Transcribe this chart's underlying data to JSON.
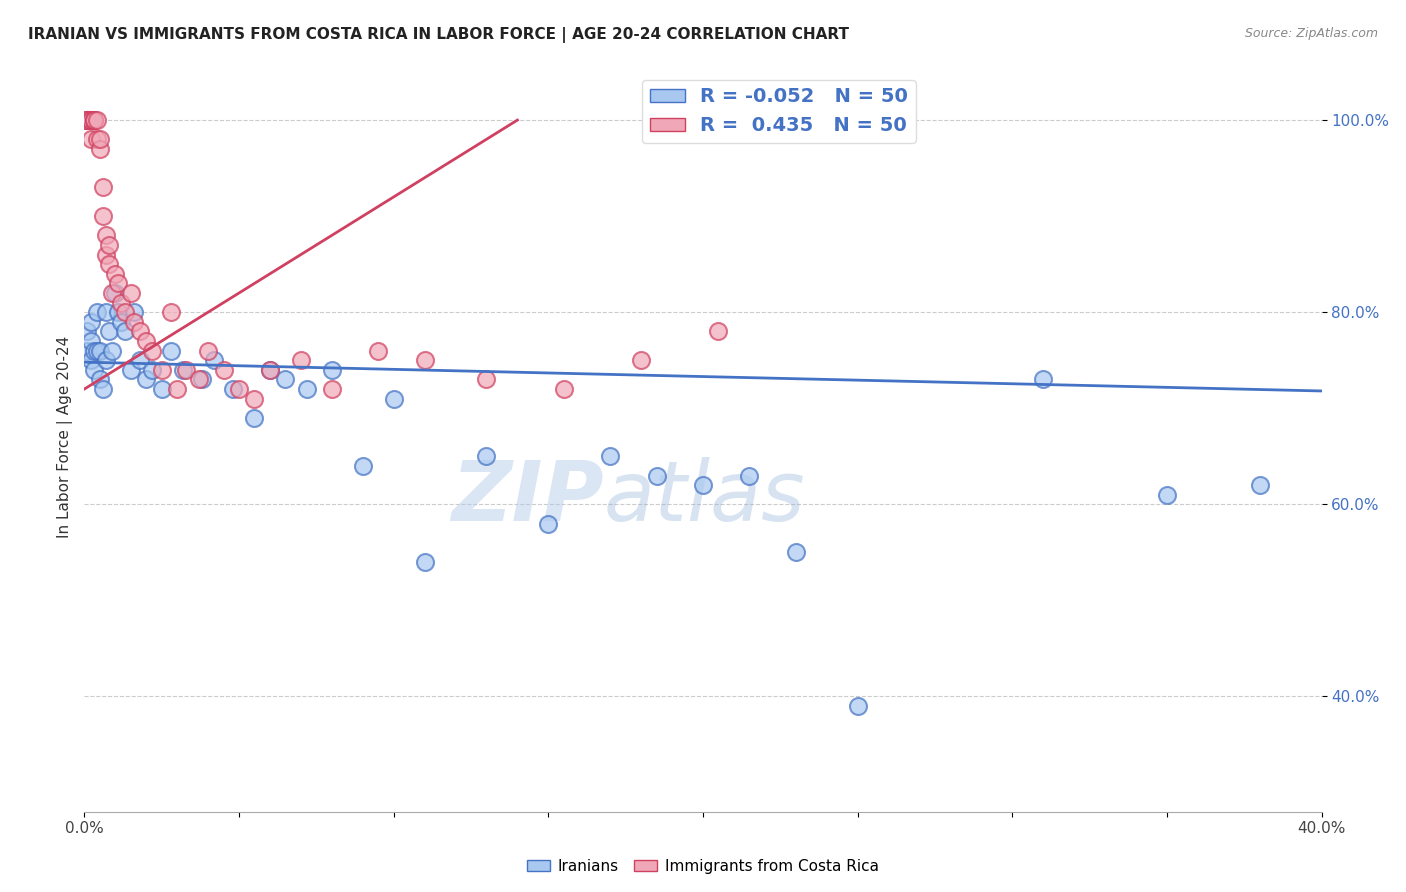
{
  "title": "IRANIAN VS IMMIGRANTS FROM COSTA RICA IN LABOR FORCE | AGE 20-24 CORRELATION CHART",
  "source": "Source: ZipAtlas.com",
  "ylabel": "In Labor Force | Age 20-24",
  "xlim": [
    0.0,
    0.4
  ],
  "ylim": [
    0.28,
    1.06
  ],
  "xticks": [
    0.0,
    0.05,
    0.1,
    0.15,
    0.2,
    0.25,
    0.3,
    0.35,
    0.4
  ],
  "xticklabels": [
    "0.0%",
    "",
    "",
    "",
    "",
    "",
    "",
    "",
    "40.0%"
  ],
  "yticks": [
    0.4,
    0.6,
    0.8,
    1.0
  ],
  "yticklabels": [
    "40.0%",
    "60.0%",
    "80.0%",
    "100.0%"
  ],
  "blue_R": -0.052,
  "blue_N": 50,
  "pink_R": 0.435,
  "pink_N": 50,
  "legend_label_blue": "Iranians",
  "legend_label_pink": "Immigrants from Costa Rica",
  "blue_color": "#a8c8f0",
  "pink_color": "#f0a8b8",
  "blue_line_color": "#4472c4",
  "pink_line_color": "#d04060",
  "watermark": "ZIPatlas",
  "watermark_color": "#c8d8f0",
  "blue_x": [
    0.001,
    0.001,
    0.002,
    0.002,
    0.002,
    0.003,
    0.003,
    0.004,
    0.004,
    0.005,
    0.005,
    0.006,
    0.007,
    0.007,
    0.008,
    0.009,
    0.01,
    0.011,
    0.012,
    0.013,
    0.015,
    0.016,
    0.018,
    0.02,
    0.022,
    0.025,
    0.028,
    0.032,
    0.038,
    0.042,
    0.048,
    0.055,
    0.06,
    0.065,
    0.072,
    0.08,
    0.09,
    0.1,
    0.11,
    0.13,
    0.15,
    0.17,
    0.185,
    0.2,
    0.215,
    0.23,
    0.25,
    0.31,
    0.35,
    0.38
  ],
  "blue_y": [
    0.78,
    0.76,
    0.77,
    0.75,
    0.79,
    0.74,
    0.76,
    0.8,
    0.76,
    0.73,
    0.76,
    0.72,
    0.8,
    0.75,
    0.78,
    0.76,
    0.82,
    0.8,
    0.79,
    0.78,
    0.74,
    0.8,
    0.75,
    0.73,
    0.74,
    0.72,
    0.76,
    0.74,
    0.73,
    0.75,
    0.72,
    0.69,
    0.74,
    0.73,
    0.72,
    0.74,
    0.64,
    0.71,
    0.54,
    0.65,
    0.58,
    0.65,
    0.63,
    0.62,
    0.63,
    0.55,
    0.39,
    0.73,
    0.61,
    0.62
  ],
  "pink_x": [
    0.001,
    0.001,
    0.001,
    0.001,
    0.001,
    0.002,
    0.002,
    0.002,
    0.002,
    0.003,
    0.003,
    0.003,
    0.004,
    0.004,
    0.005,
    0.005,
    0.006,
    0.006,
    0.007,
    0.007,
    0.008,
    0.008,
    0.009,
    0.01,
    0.011,
    0.012,
    0.013,
    0.015,
    0.016,
    0.018,
    0.02,
    0.022,
    0.025,
    0.028,
    0.03,
    0.033,
    0.037,
    0.04,
    0.045,
    0.05,
    0.055,
    0.06,
    0.07,
    0.08,
    0.095,
    0.11,
    0.13,
    0.155,
    0.18,
    0.205
  ],
  "pink_y": [
    1.0,
    1.0,
    1.0,
    1.0,
    1.0,
    1.0,
    1.0,
    1.0,
    0.98,
    1.0,
    1.0,
    1.0,
    0.98,
    1.0,
    0.97,
    0.98,
    0.93,
    0.9,
    0.88,
    0.86,
    0.87,
    0.85,
    0.82,
    0.84,
    0.83,
    0.81,
    0.8,
    0.82,
    0.79,
    0.78,
    0.77,
    0.76,
    0.74,
    0.8,
    0.72,
    0.74,
    0.73,
    0.76,
    0.74,
    0.72,
    0.71,
    0.74,
    0.75,
    0.72,
    0.76,
    0.75,
    0.73,
    0.72,
    0.75,
    0.78
  ],
  "blue_trend_x": [
    0.0,
    0.4
  ],
  "blue_trend_y": [
    0.748,
    0.718
  ],
  "pink_trend_x": [
    0.0,
    0.14
  ],
  "pink_trend_y": [
    0.72,
    1.0
  ]
}
